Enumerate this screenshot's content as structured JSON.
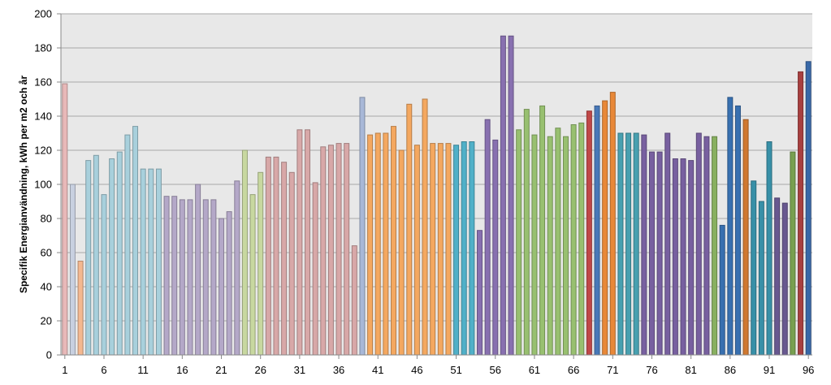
{
  "chart_data": {
    "type": "bar",
    "ylabel": "Specifik Energianvändning, kWh per m2 och år",
    "ylim": [
      0,
      200
    ],
    "yticks": [
      0,
      20,
      40,
      60,
      80,
      100,
      120,
      140,
      160,
      180,
      200
    ],
    "xtick_labels": [
      "1",
      "6",
      "11",
      "16",
      "21",
      "26",
      "31",
      "36",
      "41",
      "46",
      "51",
      "56",
      "61",
      "66",
      "71",
      "76",
      "81",
      "86",
      "91",
      "96"
    ],
    "grid": true,
    "plot_background": "#e8e8e8",
    "categories": [
      1,
      2,
      3,
      4,
      5,
      6,
      7,
      8,
      9,
      10,
      11,
      12,
      13,
      14,
      15,
      16,
      17,
      18,
      19,
      20,
      21,
      22,
      23,
      24,
      25,
      26,
      27,
      28,
      29,
      30,
      31,
      32,
      33,
      34,
      35,
      36,
      37,
      38,
      39,
      40,
      41,
      42,
      43,
      44,
      45,
      46,
      47,
      48,
      49,
      50,
      51,
      52,
      53,
      54,
      55,
      56,
      57,
      58,
      59,
      60,
      61,
      62,
      63,
      64,
      65,
      66,
      67,
      68,
      69,
      70,
      71,
      72,
      73,
      74,
      75,
      76,
      77,
      78,
      79,
      80,
      81,
      82,
      83,
      84,
      85,
      86,
      87,
      88,
      89,
      90,
      91,
      92,
      93,
      94,
      95,
      96
    ],
    "values": [
      159,
      100,
      55,
      114,
      117,
      94,
      115,
      119,
      129,
      134,
      109,
      109,
      109,
      93,
      93,
      91,
      91,
      100,
      91,
      91,
      80,
      84,
      102,
      120,
      94,
      107,
      116,
      116,
      113,
      107,
      132,
      132,
      101,
      122,
      123,
      124,
      124,
      64,
      151,
      129,
      130,
      130,
      134,
      120,
      147,
      123,
      150,
      124,
      124,
      124,
      123,
      125,
      125,
      73,
      138,
      126,
      187,
      187,
      132,
      144,
      129,
      146,
      128,
      133,
      128,
      135,
      136,
      143,
      146,
      149,
      154,
      130,
      130,
      130,
      129,
      119,
      119,
      130,
      115,
      115,
      114,
      130,
      128,
      128,
      76,
      151,
      146,
      138,
      102,
      90,
      125,
      92,
      89,
      119,
      166,
      172
    ],
    "colors": [
      "#e8b8b8",
      "#c8d0e0",
      "#f4b890",
      "#a8d0dc",
      "#a8d0dc",
      "#a8d0dc",
      "#a8d0dc",
      "#a8d0dc",
      "#a8d0dc",
      "#a8d0dc",
      "#a8d0dc",
      "#a8d0dc",
      "#a8d0dc",
      "#b4a8c8",
      "#b4a8c8",
      "#b4a8c8",
      "#b4a8c8",
      "#b4a8c8",
      "#b4a8c8",
      "#b4a8c8",
      "#b4a8c8",
      "#b4a8c8",
      "#b4a8c8",
      "#c8d8a0",
      "#c8d8a0",
      "#c8d8a0",
      "#d8a8a8",
      "#d8a8a8",
      "#d8a8a8",
      "#d8a8a8",
      "#d8a8a8",
      "#d8a8a8",
      "#d8a8a8",
      "#d8a8a8",
      "#d8a8a8",
      "#d8a8a8",
      "#d8a8a8",
      "#d8a8a8",
      "#a8b8d8",
      "#f4a860",
      "#f4a860",
      "#f4a860",
      "#f4a860",
      "#f4a860",
      "#f4a860",
      "#f4a860",
      "#f4a860",
      "#f4a860",
      "#f4a860",
      "#f4a860",
      "#50b0c8",
      "#50b0c8",
      "#50b0c8",
      "#8870b0",
      "#8870b0",
      "#8870b0",
      "#8870b0",
      "#8870b0",
      "#98c070",
      "#98c070",
      "#98c070",
      "#98c070",
      "#98c070",
      "#98c070",
      "#98c070",
      "#98c070",
      "#98c070",
      "#c04848",
      "#4878b8",
      "#e88838",
      "#e88838",
      "#48a0b0",
      "#48a0b0",
      "#48a0b0",
      "#7860a0",
      "#7860a0",
      "#7860a0",
      "#7860a0",
      "#7860a0",
      "#7860a0",
      "#7860a0",
      "#7860a0",
      "#7860a0",
      "#88b060",
      "#3870b0",
      "#3870b0",
      "#3870b0",
      "#d07830",
      "#3890a8",
      "#3890a8",
      "#3890a8",
      "#685890",
      "#685890",
      "#78a050",
      "#a84040",
      "#3868a8"
    ],
    "edge_darken": 0.75
  }
}
